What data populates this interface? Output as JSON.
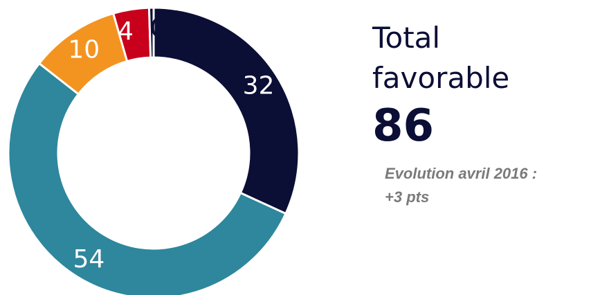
{
  "chart_data": {
    "type": "pie",
    "slices": [
      {
        "label": "32",
        "value": 32,
        "color": "#0b0e35",
        "label_color": "#ffffff"
      },
      {
        "label": "54",
        "value": 54,
        "color": "#2e879c",
        "label_color": "#ffffff"
      },
      {
        "label": "10",
        "value": 10,
        "color": "#f39421",
        "label_color": "#ffffff"
      },
      {
        "label": "4",
        "value": 4,
        "color": "#c8001c",
        "label_color": "#ffffff"
      },
      {
        "label": "0",
        "value": 0.5,
        "color": "#0b0e35",
        "label_color": "#0b0e35"
      }
    ],
    "title": "",
    "legend": "none"
  },
  "summary": {
    "title_line1": "Total",
    "title_line2": "favorable",
    "total": "86",
    "evolution_line1": "Evolution avril 2016 :",
    "evolution_line2": "+3 pts"
  },
  "colors": {
    "navy": "#0b0e35",
    "teal": "#2e879c",
    "orange": "#f39421",
    "red": "#c8001c",
    "grey": "#7a7a7a"
  }
}
